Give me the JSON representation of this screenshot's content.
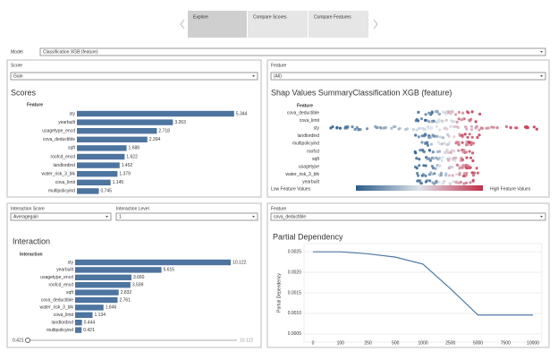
{
  "tabs": [
    "Explore",
    "Compare Scores",
    "Compare Features"
  ],
  "model": {
    "label": "Model",
    "value": "Classification XGB (feature)"
  },
  "scores": {
    "control_label": "Score",
    "control_value": "Gain",
    "title": "Scores",
    "axis_header": "Feature",
    "categories": [
      "sty",
      "yearbuilt",
      "usagetype_encd",
      "cova_deductible",
      "sqft",
      "roofcd_encd",
      "landlordind",
      "water_risk_3_blk",
      "cova_limit",
      "multipolicyind"
    ],
    "values": [
      5.344,
      3.263,
      2.718,
      2.394,
      1.688,
      1.622,
      1.452,
      1.379,
      1.145,
      0.745
    ],
    "color": "#4e74a0"
  },
  "shap": {
    "control_label": "Feature",
    "control_value": "(All)",
    "title": "Shap Values SummaryClassification XGB (feature)",
    "axis_header": "Feature",
    "features": [
      "cova_deductible",
      "cova_limit",
      "sty",
      "landlordind",
      "multipolicyind",
      "roofcd",
      "sqft",
      "usagetype",
      "water_risk_3_blk",
      "yearbuilt"
    ],
    "legend_low": "Low Feature Values",
    "legend_high": "High Feature Values"
  },
  "interaction": {
    "score_label": "Interaction Score",
    "score_value": "Averagegain",
    "level_label": "Interaction Level",
    "level_value": "1",
    "title": "Interaction",
    "axis_header": "Interaction",
    "categories": [
      "sty",
      "yearbuilt",
      "usagetype_encd",
      "roofcd_encd",
      "sqft",
      "cova_deductible",
      "water_risk_3_blk",
      "cova_limit",
      "landlordind",
      "multipolicyind"
    ],
    "values": [
      10.122,
      5.615,
      3.66,
      3.599,
      2.832,
      2.761,
      1.846,
      1.134,
      0.444,
      0.421
    ],
    "value_labels": [
      "10.122",
      "5.615",
      "3.660",
      "3.599",
      "2.832",
      "2.761",
      "1.846",
      "1.134",
      "0.444",
      "0.421"
    ],
    "color": "#4e74a0",
    "slider_min": "0.421",
    "slider_max": "10.122"
  },
  "partial": {
    "control_label": "Feature",
    "control_value": "cova_deductible",
    "chart_data": {
      "type": "line",
      "title": "Partial Dependency",
      "y_label": "Partial Dependency",
      "categories": [
        "0",
        "100",
        "250",
        "500",
        "1000",
        "2500",
        "5000",
        "7500",
        "10000"
      ],
      "values": [
        0.0025,
        0.0025,
        0.00245,
        0.00237,
        0.0022,
        0.0016,
        0.00096,
        0.00096,
        0.00096
      ],
      "ylim": [
        0.0003,
        0.0027
      ],
      "yticks": [
        0.0005,
        {
          "value": 0.001,
          "label": "0.0010"
        },
        0.0015,
        {
          "value": 0.002,
          "label": "0.0020"
        },
        0.0025
      ],
      "color": "#4e79a7"
    }
  }
}
